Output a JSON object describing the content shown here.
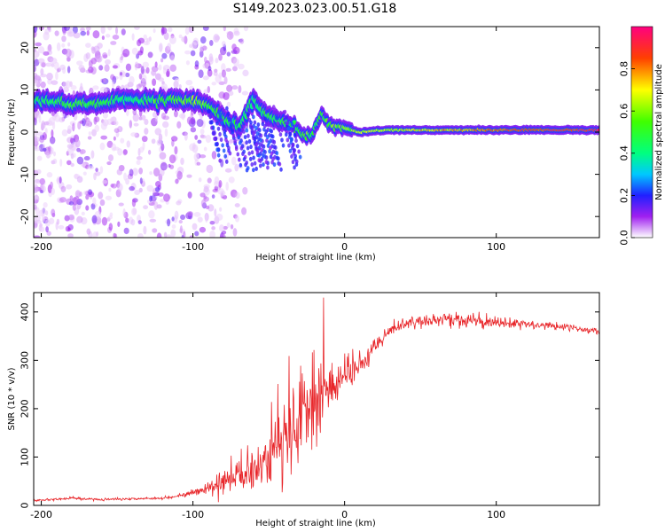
{
  "title": "S149.2023.023.00.51.G18",
  "chart_data": [
    {
      "type": "heatmap",
      "xlabel": "Height of straight line (km)",
      "ylabel": "Frequency (Hz)",
      "xlim": [
        -205,
        168
      ],
      "ylim": [
        -25,
        25
      ],
      "xticks": [
        -200,
        -100,
        0,
        100
      ],
      "yticks": [
        -20,
        -10,
        0,
        10,
        20
      ],
      "colorbar": {
        "label": "Normalized spectral amplitude",
        "range": [
          0,
          1
        ],
        "ticks": [
          0.0,
          0.2,
          0.4,
          0.6,
          0.8
        ],
        "tick_labels": [
          "0.0",
          "0.2",
          "0.4",
          "0.6",
          "0.8"
        ]
      },
      "ridge": [
        {
          "x": -205,
          "f": 7.5,
          "a": 0.45
        },
        {
          "x": -190,
          "f": 7.0,
          "a": 0.5
        },
        {
          "x": -175,
          "f": 6.5,
          "a": 0.55
        },
        {
          "x": -160,
          "f": 7.0,
          "a": 0.5
        },
        {
          "x": -140,
          "f": 7.5,
          "a": 0.4
        },
        {
          "x": -130,
          "f": 7.5,
          "a": 0.5
        },
        {
          "x": -115,
          "f": 7.5,
          "a": 0.55
        },
        {
          "x": -100,
          "f": 7.5,
          "a": 0.6
        },
        {
          "x": -90,
          "f": 6.5,
          "a": 0.55
        },
        {
          "x": -80,
          "f": 3.5,
          "a": 0.5
        },
        {
          "x": -70,
          "f": 1.0,
          "a": 0.5
        },
        {
          "x": -60,
          "f": 8.0,
          "a": 0.4
        },
        {
          "x": -55,
          "f": 5.0,
          "a": 0.45
        },
        {
          "x": -45,
          "f": 3.0,
          "a": 0.5
        },
        {
          "x": -35,
          "f": 2.0,
          "a": 0.5
        },
        {
          "x": -28,
          "f": -0.5,
          "a": 0.55
        },
        {
          "x": -22,
          "f": -1.0,
          "a": 0.5
        },
        {
          "x": -15,
          "f": 4.5,
          "a": 0.5
        },
        {
          "x": -10,
          "f": 2.0,
          "a": 0.55
        },
        {
          "x": 0,
          "f": 1.0,
          "a": 0.6
        },
        {
          "x": 10,
          "f": 0.0,
          "a": 0.65
        },
        {
          "x": 30,
          "f": 0.5,
          "a": 0.65
        },
        {
          "x": 60,
          "f": 0.5,
          "a": 0.75
        },
        {
          "x": 90,
          "f": 0.5,
          "a": 0.8
        },
        {
          "x": 120,
          "f": 0.5,
          "a": 0.88
        },
        {
          "x": 150,
          "f": 0.5,
          "a": 0.92
        },
        {
          "x": 168,
          "f": 0.5,
          "a": 0.95
        }
      ]
    },
    {
      "type": "line",
      "xlabel": "Height of straight line (km)",
      "ylabel": "SNR (10 * v/v)",
      "xlim": [
        -205,
        168
      ],
      "ylim": [
        0,
        440
      ],
      "xticks": [
        -200,
        -100,
        0,
        100
      ],
      "yticks": [
        0,
        100,
        200,
        300,
        400
      ],
      "color": "#e8262a",
      "x": [
        -205,
        -180,
        -160,
        -140,
        -120,
        -110,
        -100,
        -95,
        -90,
        -85,
        -80,
        -75,
        -70,
        -65,
        -60,
        -55,
        -50,
        -45,
        -40,
        -35,
        -30,
        -25,
        -20,
        -15,
        -10,
        -5,
        0,
        5,
        10,
        15,
        20,
        25,
        30,
        35,
        40,
        45,
        50,
        60,
        70,
        80,
        90,
        100,
        110,
        120,
        130,
        140,
        150,
        160,
        168
      ],
      "y": [
        10,
        15,
        12,
        14,
        15,
        20,
        25,
        30,
        35,
        40,
        45,
        55,
        65,
        75,
        80,
        90,
        100,
        115,
        130,
        150,
        170,
        190,
        210,
        225,
        240,
        250,
        260,
        275,
        290,
        310,
        330,
        345,
        360,
        370,
        375,
        378,
        380,
        382,
        385,
        383,
        380,
        378,
        375,
        375,
        372,
        370,
        368,
        362,
        358
      ],
      "noise": [
        3,
        4,
        3,
        3,
        3,
        5,
        8,
        12,
        18,
        30,
        40,
        50,
        55,
        60,
        65,
        70,
        80,
        90,
        100,
        110,
        110,
        110,
        110,
        90,
        70,
        50,
        40,
        35,
        30,
        28,
        25,
        22,
        20,
        18,
        16,
        16,
        16,
        18,
        20,
        20,
        18,
        16,
        14,
        12,
        10,
        10,
        9,
        9,
        9
      ]
    }
  ]
}
